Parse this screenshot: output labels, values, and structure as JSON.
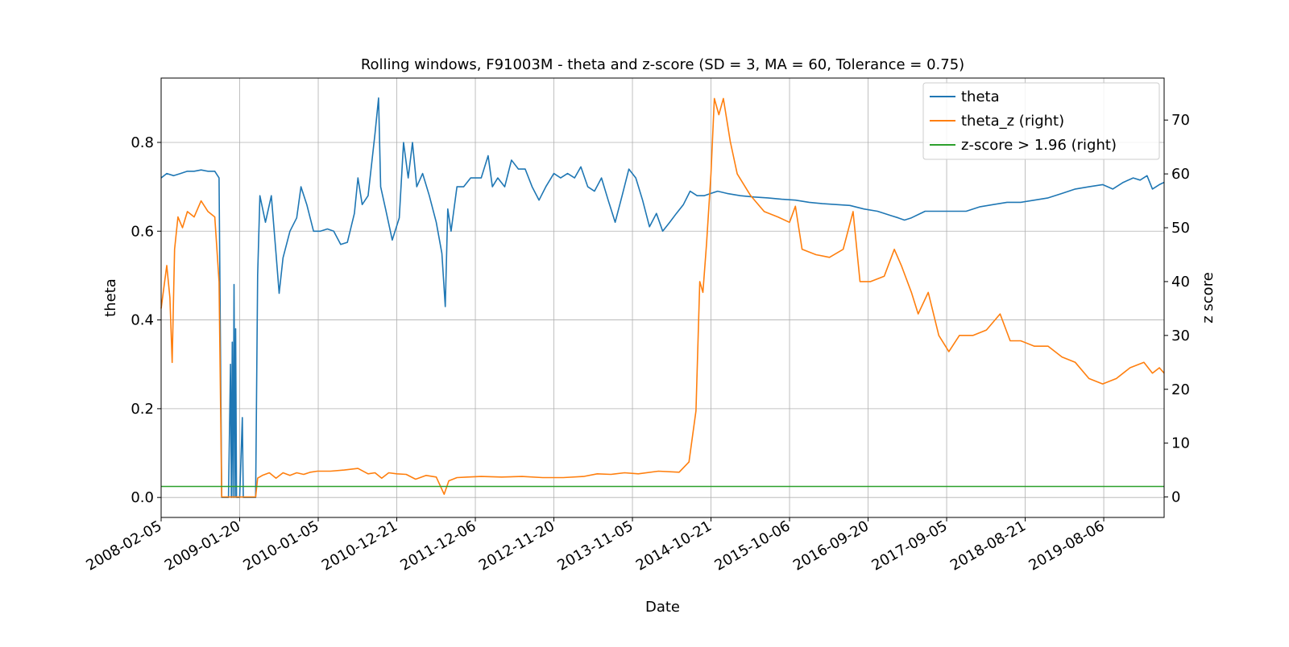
{
  "chart_data": {
    "type": "line",
    "title": "Rolling windows, F91003M - theta and z-score (SD = 3, MA = 60, Tolerance  = 0.75)",
    "xlabel": "Date",
    "ylabel": "theta",
    "ylabel_right": "z score",
    "x_ticks": [
      "2008-02-05",
      "2009-01-20",
      "2010-01-05",
      "2010-12-21",
      "2011-12-06",
      "2012-11-20",
      "2013-11-05",
      "2014-10-21",
      "2015-10-06",
      "2016-09-20",
      "2017-09-05",
      "2018-08-21",
      "2019-08-06"
    ],
    "xlim": [
      "2008-02-05",
      "2020-05-01"
    ],
    "y_ticks": [
      "0.0",
      "0.2",
      "0.4",
      "0.6",
      "0.8"
    ],
    "ylim": [
      -0.045,
      0.945
    ],
    "y2_ticks": [
      "0",
      "10",
      "20",
      "30",
      "40",
      "50",
      "60",
      "70"
    ],
    "y2lim": [
      -3.8,
      77.8
    ],
    "grid": true,
    "legend_position": "top-right",
    "series": [
      {
        "name": "theta",
        "axis": "left",
        "color": "#1f77b4",
        "points": [
          [
            "2008-02-05",
            0.72
          ],
          [
            "2008-03-01",
            0.73
          ],
          [
            "2008-04-01",
            0.725
          ],
          [
            "2008-05-01",
            0.73
          ],
          [
            "2008-06-01",
            0.735
          ],
          [
            "2008-07-01",
            0.735
          ],
          [
            "2008-08-01",
            0.738
          ],
          [
            "2008-09-01",
            0.735
          ],
          [
            "2008-10-01",
            0.735
          ],
          [
            "2008-10-20",
            0.72
          ],
          [
            "2008-11-01",
            0.0
          ],
          [
            "2008-12-01",
            0.0
          ],
          [
            "2008-12-10",
            0.3
          ],
          [
            "2008-12-14",
            0.0
          ],
          [
            "2008-12-18",
            0.35
          ],
          [
            "2008-12-22",
            0.0
          ],
          [
            "2008-12-26",
            0.48
          ],
          [
            "2008-12-30",
            0.0
          ],
          [
            "2009-01-02",
            0.38
          ],
          [
            "2009-01-06",
            0.0
          ],
          [
            "2009-01-20",
            0.0
          ],
          [
            "2009-02-01",
            0.18
          ],
          [
            "2009-02-05",
            0.0
          ],
          [
            "2009-03-01",
            0.0
          ],
          [
            "2009-04-01",
            0.0
          ],
          [
            "2009-04-10",
            0.5
          ],
          [
            "2009-04-20",
            0.68
          ],
          [
            "2009-05-15",
            0.62
          ],
          [
            "2009-06-10",
            0.68
          ],
          [
            "2009-07-01",
            0.55
          ],
          [
            "2009-07-15",
            0.46
          ],
          [
            "2009-08-01",
            0.54
          ],
          [
            "2009-09-01",
            0.6
          ],
          [
            "2009-10-01",
            0.63
          ],
          [
            "2009-10-20",
            0.7
          ],
          [
            "2009-11-15",
            0.66
          ],
          [
            "2009-12-15",
            0.6
          ],
          [
            "2010-01-15",
            0.6
          ],
          [
            "2010-02-15",
            0.605
          ],
          [
            "2010-03-15",
            0.6
          ],
          [
            "2010-04-15",
            0.57
          ],
          [
            "2010-05-15",
            0.575
          ],
          [
            "2010-06-15",
            0.64
          ],
          [
            "2010-07-01",
            0.72
          ],
          [
            "2010-07-20",
            0.66
          ],
          [
            "2010-08-15",
            0.68
          ],
          [
            "2010-09-15",
            0.82
          ],
          [
            "2010-10-01",
            0.9
          ],
          [
            "2010-10-10",
            0.7
          ],
          [
            "2010-11-01",
            0.65
          ],
          [
            "2010-12-01",
            0.58
          ],
          [
            "2011-01-01",
            0.63
          ],
          [
            "2011-01-20",
            0.8
          ],
          [
            "2011-02-10",
            0.72
          ],
          [
            "2011-03-01",
            0.8
          ],
          [
            "2011-03-20",
            0.7
          ],
          [
            "2011-04-15",
            0.73
          ],
          [
            "2011-05-15",
            0.68
          ],
          [
            "2011-06-15",
            0.62
          ],
          [
            "2011-07-10",
            0.55
          ],
          [
            "2011-07-25",
            0.43
          ],
          [
            "2011-08-05",
            0.65
          ],
          [
            "2011-08-20",
            0.6
          ],
          [
            "2011-09-15",
            0.7
          ],
          [
            "2011-10-15",
            0.7
          ],
          [
            "2011-11-15",
            0.72
          ],
          [
            "2012-01-01",
            0.72
          ],
          [
            "2012-02-01",
            0.77
          ],
          [
            "2012-02-20",
            0.7
          ],
          [
            "2012-03-15",
            0.72
          ],
          [
            "2012-04-15",
            0.7
          ],
          [
            "2012-05-15",
            0.76
          ],
          [
            "2012-06-15",
            0.74
          ],
          [
            "2012-07-15",
            0.74
          ],
          [
            "2012-08-15",
            0.7
          ],
          [
            "2012-09-15",
            0.67
          ],
          [
            "2012-10-15",
            0.7
          ],
          [
            "2012-11-20",
            0.73
          ],
          [
            "2012-12-20",
            0.72
          ],
          [
            "2013-01-20",
            0.73
          ],
          [
            "2013-02-20",
            0.72
          ],
          [
            "2013-03-20",
            0.745
          ],
          [
            "2013-04-20",
            0.7
          ],
          [
            "2013-05-20",
            0.69
          ],
          [
            "2013-06-20",
            0.72
          ],
          [
            "2013-07-20",
            0.67
          ],
          [
            "2013-08-20",
            0.62
          ],
          [
            "2013-09-20",
            0.68
          ],
          [
            "2013-10-20",
            0.74
          ],
          [
            "2013-11-20",
            0.72
          ],
          [
            "2013-12-20",
            0.67
          ],
          [
            "2014-01-20",
            0.61
          ],
          [
            "2014-02-20",
            0.64
          ],
          [
            "2014-03-20",
            0.6
          ],
          [
            "2014-04-20",
            0.62
          ],
          [
            "2014-05-20",
            0.64
          ],
          [
            "2014-06-20",
            0.66
          ],
          [
            "2014-07-20",
            0.69
          ],
          [
            "2014-08-20",
            0.68
          ],
          [
            "2014-09-20",
            0.68
          ],
          [
            "2014-10-20",
            0.685
          ],
          [
            "2014-11-20",
            0.69
          ],
          [
            "2015-01-01",
            0.685
          ],
          [
            "2015-03-01",
            0.68
          ],
          [
            "2015-05-01",
            0.677
          ],
          [
            "2015-07-01",
            0.675
          ],
          [
            "2015-09-01",
            0.672
          ],
          [
            "2015-11-01",
            0.67
          ],
          [
            "2016-01-01",
            0.665
          ],
          [
            "2016-03-01",
            0.662
          ],
          [
            "2016-05-01",
            0.66
          ],
          [
            "2016-07-01",
            0.658
          ],
          [
            "2016-09-01",
            0.65
          ],
          [
            "2016-11-01",
            0.645
          ],
          [
            "2017-01-01",
            0.635
          ],
          [
            "2017-02-01",
            0.63
          ],
          [
            "2017-03-01",
            0.625
          ],
          [
            "2017-04-01",
            0.63
          ],
          [
            "2017-06-01",
            0.645
          ],
          [
            "2017-08-01",
            0.645
          ],
          [
            "2017-10-01",
            0.645
          ],
          [
            "2017-12-01",
            0.645
          ],
          [
            "2018-02-01",
            0.655
          ],
          [
            "2018-04-01",
            0.66
          ],
          [
            "2018-06-01",
            0.665
          ],
          [
            "2018-08-01",
            0.665
          ],
          [
            "2018-10-01",
            0.67
          ],
          [
            "2018-12-01",
            0.675
          ],
          [
            "2019-02-01",
            0.685
          ],
          [
            "2019-04-01",
            0.695
          ],
          [
            "2019-06-01",
            0.7
          ],
          [
            "2019-08-01",
            0.705
          ],
          [
            "2019-09-15",
            0.695
          ],
          [
            "2019-11-01",
            0.71
          ],
          [
            "2019-12-15",
            0.72
          ],
          [
            "2020-01-15",
            0.715
          ],
          [
            "2020-02-15",
            0.725
          ],
          [
            "2020-03-10",
            0.695
          ],
          [
            "2020-04-10",
            0.705
          ],
          [
            "2020-05-01",
            0.71
          ]
        ]
      },
      {
        "name": "theta_z (right)",
        "axis": "right",
        "color": "#ff7f0e",
        "points": [
          [
            "2008-02-05",
            35
          ],
          [
            "2008-03-01",
            43
          ],
          [
            "2008-03-15",
            37
          ],
          [
            "2008-03-25",
            25
          ],
          [
            "2008-04-05",
            46
          ],
          [
            "2008-04-20",
            52
          ],
          [
            "2008-05-10",
            50
          ],
          [
            "2008-06-01",
            53
          ],
          [
            "2008-07-01",
            52
          ],
          [
            "2008-08-01",
            55
          ],
          [
            "2008-09-01",
            53
          ],
          [
            "2008-10-01",
            52
          ],
          [
            "2008-10-20",
            40
          ],
          [
            "2008-11-01",
            0
          ],
          [
            "2008-12-01",
            0
          ],
          [
            "2009-01-01",
            0
          ],
          [
            "2009-02-01",
            0
          ],
          [
            "2009-03-01",
            0
          ],
          [
            "2009-04-01",
            0
          ],
          [
            "2009-04-10",
            3.5
          ],
          [
            "2009-05-01",
            4
          ],
          [
            "2009-06-01",
            4.5
          ],
          [
            "2009-07-01",
            3.5
          ],
          [
            "2009-08-01",
            4.5
          ],
          [
            "2009-09-01",
            4
          ],
          [
            "2009-10-01",
            4.5
          ],
          [
            "2009-11-01",
            4.2
          ],
          [
            "2009-12-01",
            4.6
          ],
          [
            "2010-01-01",
            4.8
          ],
          [
            "2010-03-01",
            4.8
          ],
          [
            "2010-05-01",
            5
          ],
          [
            "2010-07-01",
            5.3
          ],
          [
            "2010-08-15",
            4.3
          ],
          [
            "2010-09-15",
            4.5
          ],
          [
            "2010-10-15",
            3.5
          ],
          [
            "2010-11-15",
            4.5
          ],
          [
            "2010-12-21",
            4.3
          ],
          [
            "2011-02-01",
            4.2
          ],
          [
            "2011-03-15",
            3.3
          ],
          [
            "2011-05-01",
            4
          ],
          [
            "2011-06-15",
            3.7
          ],
          [
            "2011-07-20",
            0.5
          ],
          [
            "2011-08-10",
            3
          ],
          [
            "2011-09-15",
            3.6
          ],
          [
            "2011-11-01",
            3.7
          ],
          [
            "2012-01-01",
            3.8
          ],
          [
            "2012-04-01",
            3.7
          ],
          [
            "2012-07-01",
            3.8
          ],
          [
            "2012-10-01",
            3.6
          ],
          [
            "2013-01-01",
            3.6
          ],
          [
            "2013-04-01",
            3.8
          ],
          [
            "2013-06-01",
            4.3
          ],
          [
            "2013-08-01",
            4.2
          ],
          [
            "2013-10-01",
            4.5
          ],
          [
            "2013-12-01",
            4.3
          ],
          [
            "2014-03-01",
            4.8
          ],
          [
            "2014-06-01",
            4.6
          ],
          [
            "2014-07-15",
            6.5
          ],
          [
            "2014-08-15",
            16
          ],
          [
            "2014-09-01",
            40
          ],
          [
            "2014-09-15",
            38
          ],
          [
            "2014-10-01",
            47
          ],
          [
            "2014-10-21",
            60
          ],
          [
            "2014-11-05",
            74
          ],
          [
            "2014-11-25",
            71
          ],
          [
            "2014-12-15",
            74
          ],
          [
            "2015-01-15",
            66
          ],
          [
            "2015-02-15",
            60
          ],
          [
            "2015-04-15",
            56
          ],
          [
            "2015-06-15",
            53
          ],
          [
            "2015-08-15",
            52
          ],
          [
            "2015-10-06",
            51
          ],
          [
            "2015-11-01",
            54
          ],
          [
            "2015-12-01",
            46
          ],
          [
            "2016-02-01",
            45
          ],
          [
            "2016-04-01",
            44.5
          ],
          [
            "2016-06-01",
            46
          ],
          [
            "2016-07-15",
            53
          ],
          [
            "2016-08-15",
            40
          ],
          [
            "2016-10-01",
            40
          ],
          [
            "2016-12-01",
            41
          ],
          [
            "2017-01-15",
            46
          ],
          [
            "2017-02-15",
            43
          ],
          [
            "2017-04-01",
            38
          ],
          [
            "2017-05-01",
            34
          ],
          [
            "2017-06-15",
            38
          ],
          [
            "2017-08-01",
            30
          ],
          [
            "2017-09-15",
            27
          ],
          [
            "2017-11-01",
            30
          ],
          [
            "2018-01-01",
            30
          ],
          [
            "2018-03-01",
            31
          ],
          [
            "2018-05-01",
            34
          ],
          [
            "2018-06-15",
            29
          ],
          [
            "2018-08-01",
            29
          ],
          [
            "2018-10-01",
            28
          ],
          [
            "2018-12-01",
            28
          ],
          [
            "2019-02-01",
            26
          ],
          [
            "2019-04-01",
            25
          ],
          [
            "2019-06-01",
            22
          ],
          [
            "2019-08-01",
            21
          ],
          [
            "2019-10-01",
            22
          ],
          [
            "2019-12-01",
            24
          ],
          [
            "2020-02-01",
            25
          ],
          [
            "2020-03-10",
            23
          ],
          [
            "2020-04-10",
            24
          ],
          [
            "2020-05-01",
            23
          ]
        ]
      },
      {
        "name": "z-score > 1.96 (right)",
        "axis": "right",
        "color": "#2ca02c",
        "points": [
          [
            "2008-02-05",
            1.96
          ],
          [
            "2020-05-01",
            1.96
          ]
        ]
      }
    ]
  }
}
